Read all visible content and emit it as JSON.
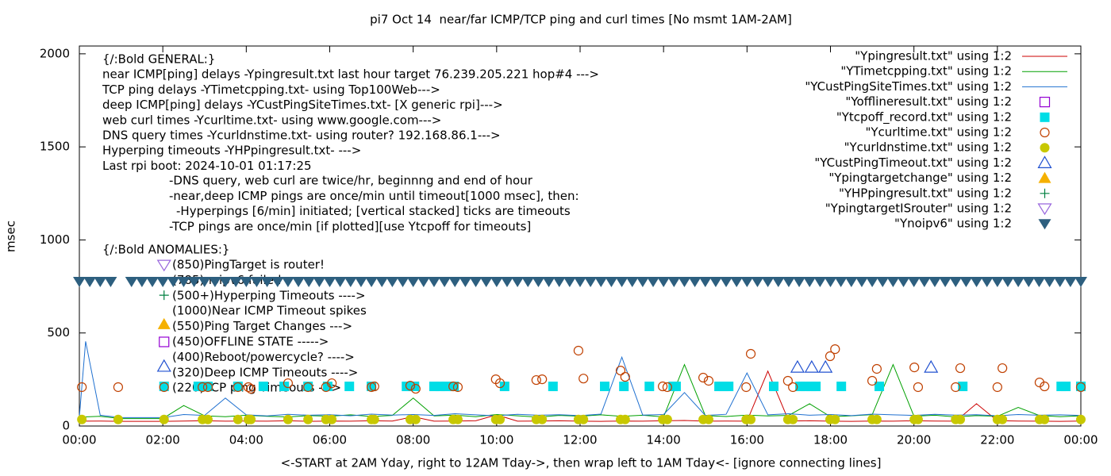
{
  "chart_data": {
    "type": "line",
    "title": "pi7 Oct 14  near/far ICMP/TCP ping and curl times [No msmt 1AM-2AM]",
    "xlabel": "<-START at 2AM Yday, right to 12AM Tday->, then wrap left to 1AM Tday<- [ignore connecting lines]",
    "ylabel": "msec",
    "xlim": [
      0,
      24
    ],
    "xticks": [
      {
        "value": 0,
        "label": "00:00"
      },
      {
        "value": 2,
        "label": "02:00"
      },
      {
        "value": 4,
        "label": "04:00"
      },
      {
        "value": 6,
        "label": "06:00"
      },
      {
        "value": 8,
        "label": "08:00"
      },
      {
        "value": 10,
        "label": "10:00"
      },
      {
        "value": 12,
        "label": "12:00"
      },
      {
        "value": 14,
        "label": "14:00"
      },
      {
        "value": 16,
        "label": "16:00"
      },
      {
        "value": 18,
        "label": "18:00"
      },
      {
        "value": 20,
        "label": "20:00"
      },
      {
        "value": 22,
        "label": "22:00"
      },
      {
        "value": 24,
        "label": "00:00"
      }
    ],
    "ylim": [
      0,
      2042
    ],
    "yticks": [
      0,
      500,
      1000,
      1500,
      2000
    ],
    "grid": false,
    "legend": "top right",
    "annotations": {
      "general": [
        "{/:Bold GENERAL:}",
        "near ICMP[ping] delays -Ypingresult.txt last hour target 76.239.205.221 hop#4 --->",
        "TCP ping delays -YTimetcpping.txt- using Top100Web--->",
        "deep ICMP[ping] delays -YCustPingSiteTimes.txt- [X generic rpi]--->",
        "web curl times -Ycurltime.txt- using www.google.com--->",
        "DNS query times -Ycurldnstime.txt- using router? 192.168.86.1--->",
        "Hyperping timeouts -YHPpingresult.txt- --->",
        "Last rpi boot: 2024-10-01 01:17:25"
      ],
      "notes": [
        "-DNS query, web curl are twice/hr, beginnng and end of hour",
        "-near,deep ICMP pings are once/min until timeout[1000 msec], then:",
        "-Hyperpings [6/min] initiated; [vertical stacked] ticks are timeouts",
        "-TCP pings are once/min [if plotted][use Ytcpoff for timeouts]"
      ],
      "anomalies": [
        "{/:Bold ANOMALIES:}",
        "(850)PingTarget is router!",
        "(785)noipv6 failed",
        "(500+)Hyperping Timeouts ---->",
        "(1000)Near ICMP Timeout spikes",
        "(550)Ping Target Changes --->",
        "(450)OFFLINE STATE ----->",
        "(400)Reboot/powercycle? ---->",
        "(320)Deep ICMP Timeouts ---->",
        "(220)TCP ping Timeouts --->"
      ]
    },
    "series": [
      {
        "name": "\"Ypingresult.txt\" using 1:2",
        "type": "line",
        "color": "#cc0000",
        "x": [
          0,
          0.5,
          1,
          1.5,
          2,
          2.5,
          3,
          3.5,
          4,
          4.5,
          5,
          5.5,
          6,
          6.5,
          7,
          7.5,
          8,
          8.5,
          9,
          9.5,
          10,
          10.5,
          11,
          11.5,
          12,
          12.5,
          13,
          13.5,
          14,
          14.5,
          15,
          15.5,
          16,
          16.5,
          17,
          17.5,
          18,
          18.5,
          19,
          19.5,
          20,
          20.5,
          21,
          21.5,
          22,
          22.5,
          23,
          23.5,
          24
        ],
        "values": [
          26,
          27,
          25,
          25,
          25,
          27,
          28,
          26,
          27,
          26,
          28,
          25,
          27,
          26,
          28,
          27,
          50,
          26,
          27,
          28,
          60,
          26,
          27,
          28,
          26,
          25,
          27,
          26,
          28,
          30,
          26,
          27,
          26,
          295,
          27,
          28,
          26,
          25,
          27,
          26,
          28,
          27,
          26,
          120,
          28,
          27,
          26,
          25,
          27
        ]
      },
      {
        "name": "\"YTimetcpping.txt\" using 1:2",
        "type": "line",
        "color": "#00a000",
        "x": [
          0,
          0.5,
          1,
          1.5,
          2,
          2.5,
          3,
          3.5,
          4,
          4.5,
          5,
          5.5,
          6,
          6.5,
          7,
          7.5,
          8,
          8.5,
          9,
          9.5,
          10,
          10.5,
          11,
          11.5,
          12,
          12.5,
          13,
          13.5,
          14,
          14.5,
          15,
          15.5,
          16,
          16.5,
          17,
          17.5,
          18,
          18.5,
          19,
          19.5,
          20,
          20.5,
          21,
          21.5,
          22,
          22.5,
          23,
          23.5,
          24
        ],
        "values": [
          48,
          52,
          40,
          40,
          40,
          110,
          55,
          50,
          58,
          52,
          49,
          56,
          53,
          60,
          51,
          57,
          150,
          54,
          59,
          50,
          62,
          55,
          48,
          57,
          53,
          60,
          52,
          58,
          49,
          330,
          56,
          51,
          59,
          54,
          57,
          120,
          50,
          55,
          61,
          330,
          53,
          58,
          49,
          56,
          52,
          100,
          57,
          50,
          55
        ]
      },
      {
        "name": "\"YCustPingSiteTimes.txt\" using 1:2",
        "type": "line",
        "color": "#1f70d0",
        "x": [
          0,
          0.15,
          0.5,
          1,
          1.5,
          2,
          2.5,
          3,
          3.5,
          4,
          4.5,
          5,
          5.5,
          6,
          6.5,
          7,
          7.5,
          8,
          8.5,
          9,
          9.5,
          10,
          10.5,
          11,
          11.5,
          12,
          12.5,
          13,
          13.5,
          14,
          14.5,
          15,
          15.5,
          16,
          16.5,
          17,
          17.5,
          18,
          18.5,
          19,
          19.5,
          20,
          20.5,
          21,
          21.5,
          22,
          22.5,
          23,
          23.5,
          24
        ],
        "values": [
          50,
          455,
          58,
          45,
          45,
          45,
          62,
          57,
          150,
          60,
          54,
          63,
          58,
          61,
          55,
          64,
          59,
          62,
          57,
          66,
          60,
          55,
          63,
          58,
          61,
          56,
          64,
          370,
          59,
          62,
          180,
          57,
          63,
          285,
          60,
          66,
          58,
          62,
          56,
          64,
          60,
          57,
          63,
          59,
          61,
          55,
          62,
          58,
          60,
          57
        ]
      },
      {
        "name": "\"Yofflineresult.txt\" using 1:2",
        "type": "scatter",
        "marker": "square-open",
        "color": "#9400d3",
        "x": [
          2.03
        ],
        "values": [
          452
        ]
      },
      {
        "name": "\"Ytcpoff_record.txt\" using 1:2",
        "type": "scatter",
        "marker": "square",
        "color": "#00dde6",
        "x": [
          2.03,
          2.85,
          2.99,
          3.08,
          3.8,
          4.41,
          4.91,
          5.48,
          5.95,
          6.47,
          7,
          7.84,
          8.03,
          8.5,
          8.65,
          8.79,
          8.98,
          10.19,
          11.35,
          12.59,
          13.05,
          13.66,
          14.23,
          14.3,
          15.33,
          15.44,
          15.56,
          16.64,
          17.27,
          17.4,
          17.54,
          17.65,
          18.26,
          19.17,
          21.17,
          23.53,
          23.64,
          24
        ],
        "values": [
          213,
          213,
          213,
          213,
          213,
          213,
          213,
          213,
          213,
          213,
          213,
          213,
          213,
          213,
          213,
          213,
          213,
          213,
          213,
          213,
          213,
          213,
          213,
          213,
          213,
          213,
          213,
          213,
          213,
          213,
          213,
          213,
          213,
          213,
          213,
          213,
          213,
          213
        ]
      },
      {
        "name": "\"Ycurltime.txt\" using 1:2",
        "type": "scatter",
        "marker": "circle-open",
        "color": "#c04000",
        "x": [
          0.06,
          0.93,
          2.03,
          2.95,
          3.08,
          3.8,
          4.05,
          4.11,
          5,
          5.48,
          5.91,
          6.05,
          7,
          7.07,
          7.93,
          8.06,
          8.96,
          9.07,
          9.98,
          10.08,
          10.95,
          11.09,
          11.96,
          12.08,
          12.97,
          13.08,
          13.98,
          14.09,
          14.95,
          15.08,
          15.98,
          16.09,
          16.98,
          17.1,
          17.99,
          18.11,
          19,
          19.11,
          20.01,
          20.1,
          21,
          21.11,
          22,
          22.12,
          23.01,
          23.13,
          24
        ],
        "values": [
          209,
          209,
          209,
          209,
          209,
          209,
          209,
          200,
          230,
          209,
          209,
          230,
          209,
          213,
          217,
          200,
          213,
          209,
          251,
          230,
          247,
          251,
          405,
          255,
          298,
          264,
          213,
          209,
          260,
          243,
          209,
          388,
          243,
          209,
          375,
          413,
          243,
          307,
          315,
          209,
          209,
          311,
          209,
          311,
          234,
          213,
          209
        ]
      },
      {
        "name": "\"Ycurldnstime.txt\" using 1:2",
        "type": "scatter",
        "marker": "circle",
        "color": "#c8c800",
        "x": [
          0.06,
          0.93,
          2.03,
          2.95,
          3.08,
          3.8,
          4.05,
          4.11,
          5,
          5.48,
          5.91,
          6.05,
          7,
          7.07,
          7.93,
          8.06,
          8.96,
          9.07,
          9.98,
          10.08,
          10.95,
          11.09,
          11.96,
          12.08,
          12.97,
          13.08,
          13.98,
          14.09,
          14.95,
          15.08,
          15.98,
          16.09,
          16.98,
          17.1,
          17.99,
          18.11,
          19,
          19.11,
          20.01,
          20.1,
          21,
          21.11,
          22,
          22.12,
          23.01,
          23.13,
          24
        ],
        "values": [
          35,
          35,
          35,
          35,
          35,
          35,
          35,
          35,
          35,
          35,
          35,
          35,
          35,
          35,
          35,
          35,
          35,
          35,
          35,
          35,
          35,
          35,
          35,
          35,
          35,
          35,
          35,
          35,
          35,
          35,
          35,
          35,
          35,
          35,
          35,
          35,
          35,
          35,
          35,
          35,
          35,
          35,
          35,
          35,
          35,
          35,
          35
        ]
      },
      {
        "name": "\"YCustPingTimeout.txt\" using 1:2",
        "type": "scatter",
        "marker": "triangle-open",
        "color": "#2050d0",
        "x": [
          2.03,
          17.21,
          17.55,
          17.88,
          20.41
        ],
        "values": [
          320,
          315,
          315,
          315,
          315
        ]
      },
      {
        "name": "\"Ypingtargetchange\" using 1:2",
        "type": "scatter",
        "marker": "triangle",
        "color": "#f5b000",
        "x": [
          2.03
        ],
        "values": [
          546
        ]
      },
      {
        "name": "\"YHPpingresult.txt\" using 1:2",
        "type": "scatter",
        "marker": "plus",
        "color": "#008040",
        "x": [
          2.03
        ],
        "values": [
          703
        ]
      },
      {
        "name": "\"YpingtargetISrouter\" using 1:2",
        "type": "scatter",
        "marker": "triangle-down-open",
        "color": "#9966dd",
        "x": [
          2.03
        ],
        "values": [
          865
        ]
      },
      {
        "name": "\"Ynoipv6\" using 1:2",
        "type": "scatter",
        "marker": "triangle-down",
        "color": "#2d5f7f",
        "x": [
          0,
          0.25,
          0.5,
          0.75,
          1.25,
          1.5,
          1.75,
          2,
          2.25,
          2.5,
          2.75,
          3,
          3.25,
          3.5,
          3.75,
          4,
          4.25,
          4.5,
          4.75,
          5,
          5.25,
          5.5,
          5.75,
          6,
          6.25,
          6.5,
          6.75,
          7,
          7.25,
          7.5,
          7.75,
          8,
          8.25,
          8.5,
          8.75,
          9,
          9.25,
          9.5,
          9.75,
          10,
          10.25,
          10.5,
          10.75,
          11,
          11.25,
          11.5,
          11.75,
          12,
          12.25,
          12.5,
          12.75,
          13,
          13.25,
          13.5,
          13.75,
          14,
          14.25,
          14.5,
          14.75,
          15,
          15.25,
          15.5,
          15.75,
          16,
          16.25,
          16.5,
          16.75,
          17,
          17.25,
          17.5,
          17.75,
          18,
          18.25,
          18.5,
          18.75,
          19,
          19.25,
          19.5,
          19.75,
          20,
          20.25,
          20.5,
          20.75,
          21,
          21.25,
          21.5,
          21.75,
          22,
          22.25,
          22.5,
          22.75,
          23,
          23.25,
          23.5,
          23.75,
          24
        ],
        "values": [
          776,
          776,
          776,
          776,
          776,
          776,
          776,
          776,
          776,
          776,
          776,
          776,
          776,
          776,
          776,
          776,
          776,
          776,
          776,
          776,
          776,
          776,
          776,
          776,
          776,
          776,
          776,
          776,
          776,
          776,
          776,
          776,
          776,
          776,
          776,
          776,
          776,
          776,
          776,
          776,
          776,
          776,
          776,
          776,
          776,
          776,
          776,
          776,
          776,
          776,
          776,
          776,
          776,
          776,
          776,
          776,
          776,
          776,
          776,
          776,
          776,
          776,
          776,
          776,
          776,
          776,
          776,
          776,
          776,
          776,
          776,
          776,
          776,
          776,
          776,
          776,
          776,
          776,
          776,
          776,
          776,
          776,
          776,
          776,
          776,
          776,
          776,
          776,
          776,
          776,
          776,
          776,
          776,
          776,
          776,
          776
        ]
      }
    ]
  }
}
